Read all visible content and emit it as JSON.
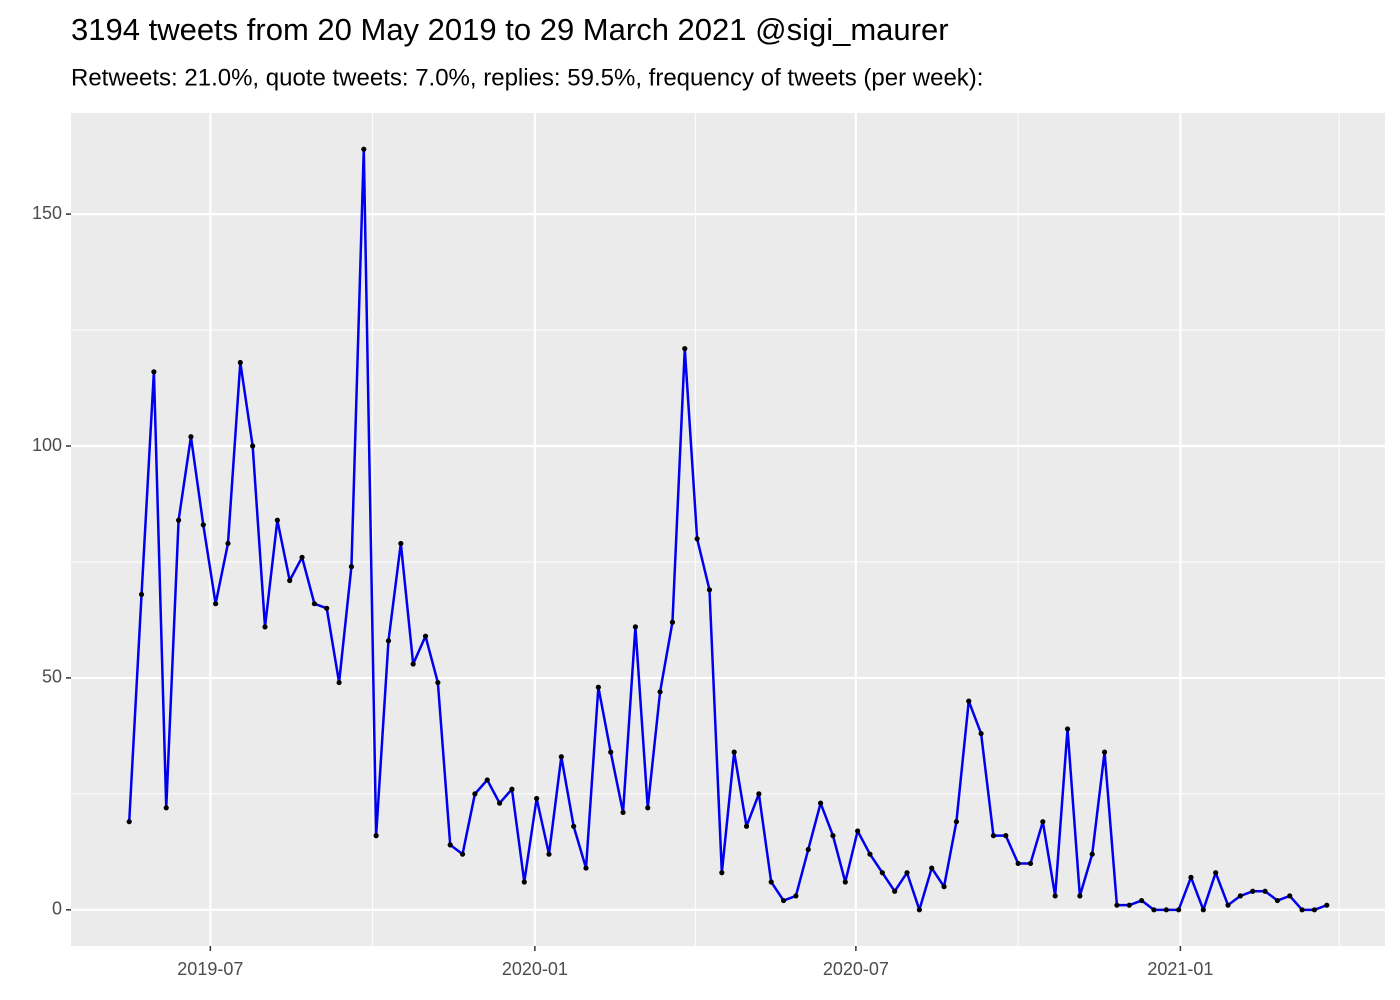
{
  "chart_data": {
    "type": "line",
    "title": "3194 tweets from 20 May 2019 to 29 March 2021 @sigi_maurer",
    "subtitle": "Retweets: 21.0%, quote tweets: 7.0%, replies: 59.5%, frequency of tweets (per week):",
    "x": [
      "2019-05-16",
      "2019-05-23",
      "2019-05-30",
      "2019-06-06",
      "2019-06-13",
      "2019-06-20",
      "2019-06-27",
      "2019-07-04",
      "2019-07-11",
      "2019-07-18",
      "2019-07-25",
      "2019-08-01",
      "2019-08-08",
      "2019-08-15",
      "2019-08-22",
      "2019-08-29",
      "2019-09-05",
      "2019-09-12",
      "2019-09-19",
      "2019-09-26",
      "2019-10-03",
      "2019-10-10",
      "2019-10-17",
      "2019-10-24",
      "2019-10-31",
      "2019-11-07",
      "2019-11-14",
      "2019-11-21",
      "2019-11-28",
      "2019-12-05",
      "2019-12-12",
      "2019-12-19",
      "2019-12-26",
      "2020-01-02",
      "2020-01-09",
      "2020-01-16",
      "2020-01-23",
      "2020-01-30",
      "2020-02-06",
      "2020-02-13",
      "2020-02-20",
      "2020-02-27",
      "2020-03-05",
      "2020-03-12",
      "2020-03-19",
      "2020-03-26",
      "2020-04-02",
      "2020-04-09",
      "2020-04-16",
      "2020-04-23",
      "2020-04-30",
      "2020-05-07",
      "2020-05-14",
      "2020-05-21",
      "2020-05-28",
      "2020-06-04",
      "2020-06-11",
      "2020-06-18",
      "2020-06-25",
      "2020-07-02",
      "2020-07-09",
      "2020-07-16",
      "2020-07-23",
      "2020-07-30",
      "2020-08-06",
      "2020-08-13",
      "2020-08-20",
      "2020-08-27",
      "2020-09-03",
      "2020-09-10",
      "2020-09-17",
      "2020-09-24",
      "2020-10-01",
      "2020-10-08",
      "2020-10-15",
      "2020-10-22",
      "2020-10-29",
      "2020-11-05",
      "2020-11-12",
      "2020-11-19",
      "2020-11-26",
      "2020-12-03",
      "2020-12-10",
      "2020-12-17",
      "2020-12-24",
      "2020-12-31",
      "2021-01-07",
      "2021-01-14",
      "2021-01-21",
      "2021-01-28",
      "2021-02-04",
      "2021-02-11",
      "2021-02-18",
      "2021-02-25",
      "2021-03-04",
      "2021-03-11",
      "2021-03-18",
      "2021-03-25"
    ],
    "series": [
      {
        "color": "#0000ee",
        "values": [
          19,
          68,
          116,
          22,
          84,
          102,
          83,
          66,
          79,
          118,
          100,
          61,
          84,
          71,
          76,
          66,
          65,
          49,
          74,
          164,
          16,
          58,
          79,
          53,
          59,
          49,
          14,
          12,
          25,
          28,
          23,
          26,
          6,
          24,
          12,
          33,
          18,
          9,
          48,
          34,
          21,
          61,
          22,
          47,
          62,
          121,
          80,
          69,
          8,
          34,
          18,
          25,
          6,
          2,
          3,
          13,
          23,
          16,
          6,
          17,
          12,
          8,
          4,
          8,
          0,
          9,
          5,
          19,
          45,
          38,
          16,
          16,
          10,
          10,
          19,
          3,
          39,
          3,
          12,
          34,
          1,
          1,
          2,
          0,
          0,
          0,
          7,
          0,
          8,
          1,
          3,
          4,
          4,
          2,
          3,
          0,
          0,
          1
        ]
      }
    ],
    "point_color": "#000000",
    "xlim": [
      "2019-04-13",
      "2021-04-27"
    ],
    "xticks": [
      {
        "value": "2019-07-01",
        "label": "2019-07"
      },
      {
        "value": "2020-01-01",
        "label": "2020-01"
      },
      {
        "value": "2020-07-01",
        "label": "2020-07"
      },
      {
        "value": "2021-01-01",
        "label": "2021-01"
      }
    ],
    "xticks_minor": [
      "2019-10-01",
      "2020-04-01",
      "2020-10-01",
      "2021-04-01"
    ],
    "ylim": [
      -7.8,
      171.8
    ],
    "yticks": [
      0,
      50,
      100,
      150
    ],
    "yticks_minor": [
      25,
      75,
      125
    ],
    "grid": true
  }
}
